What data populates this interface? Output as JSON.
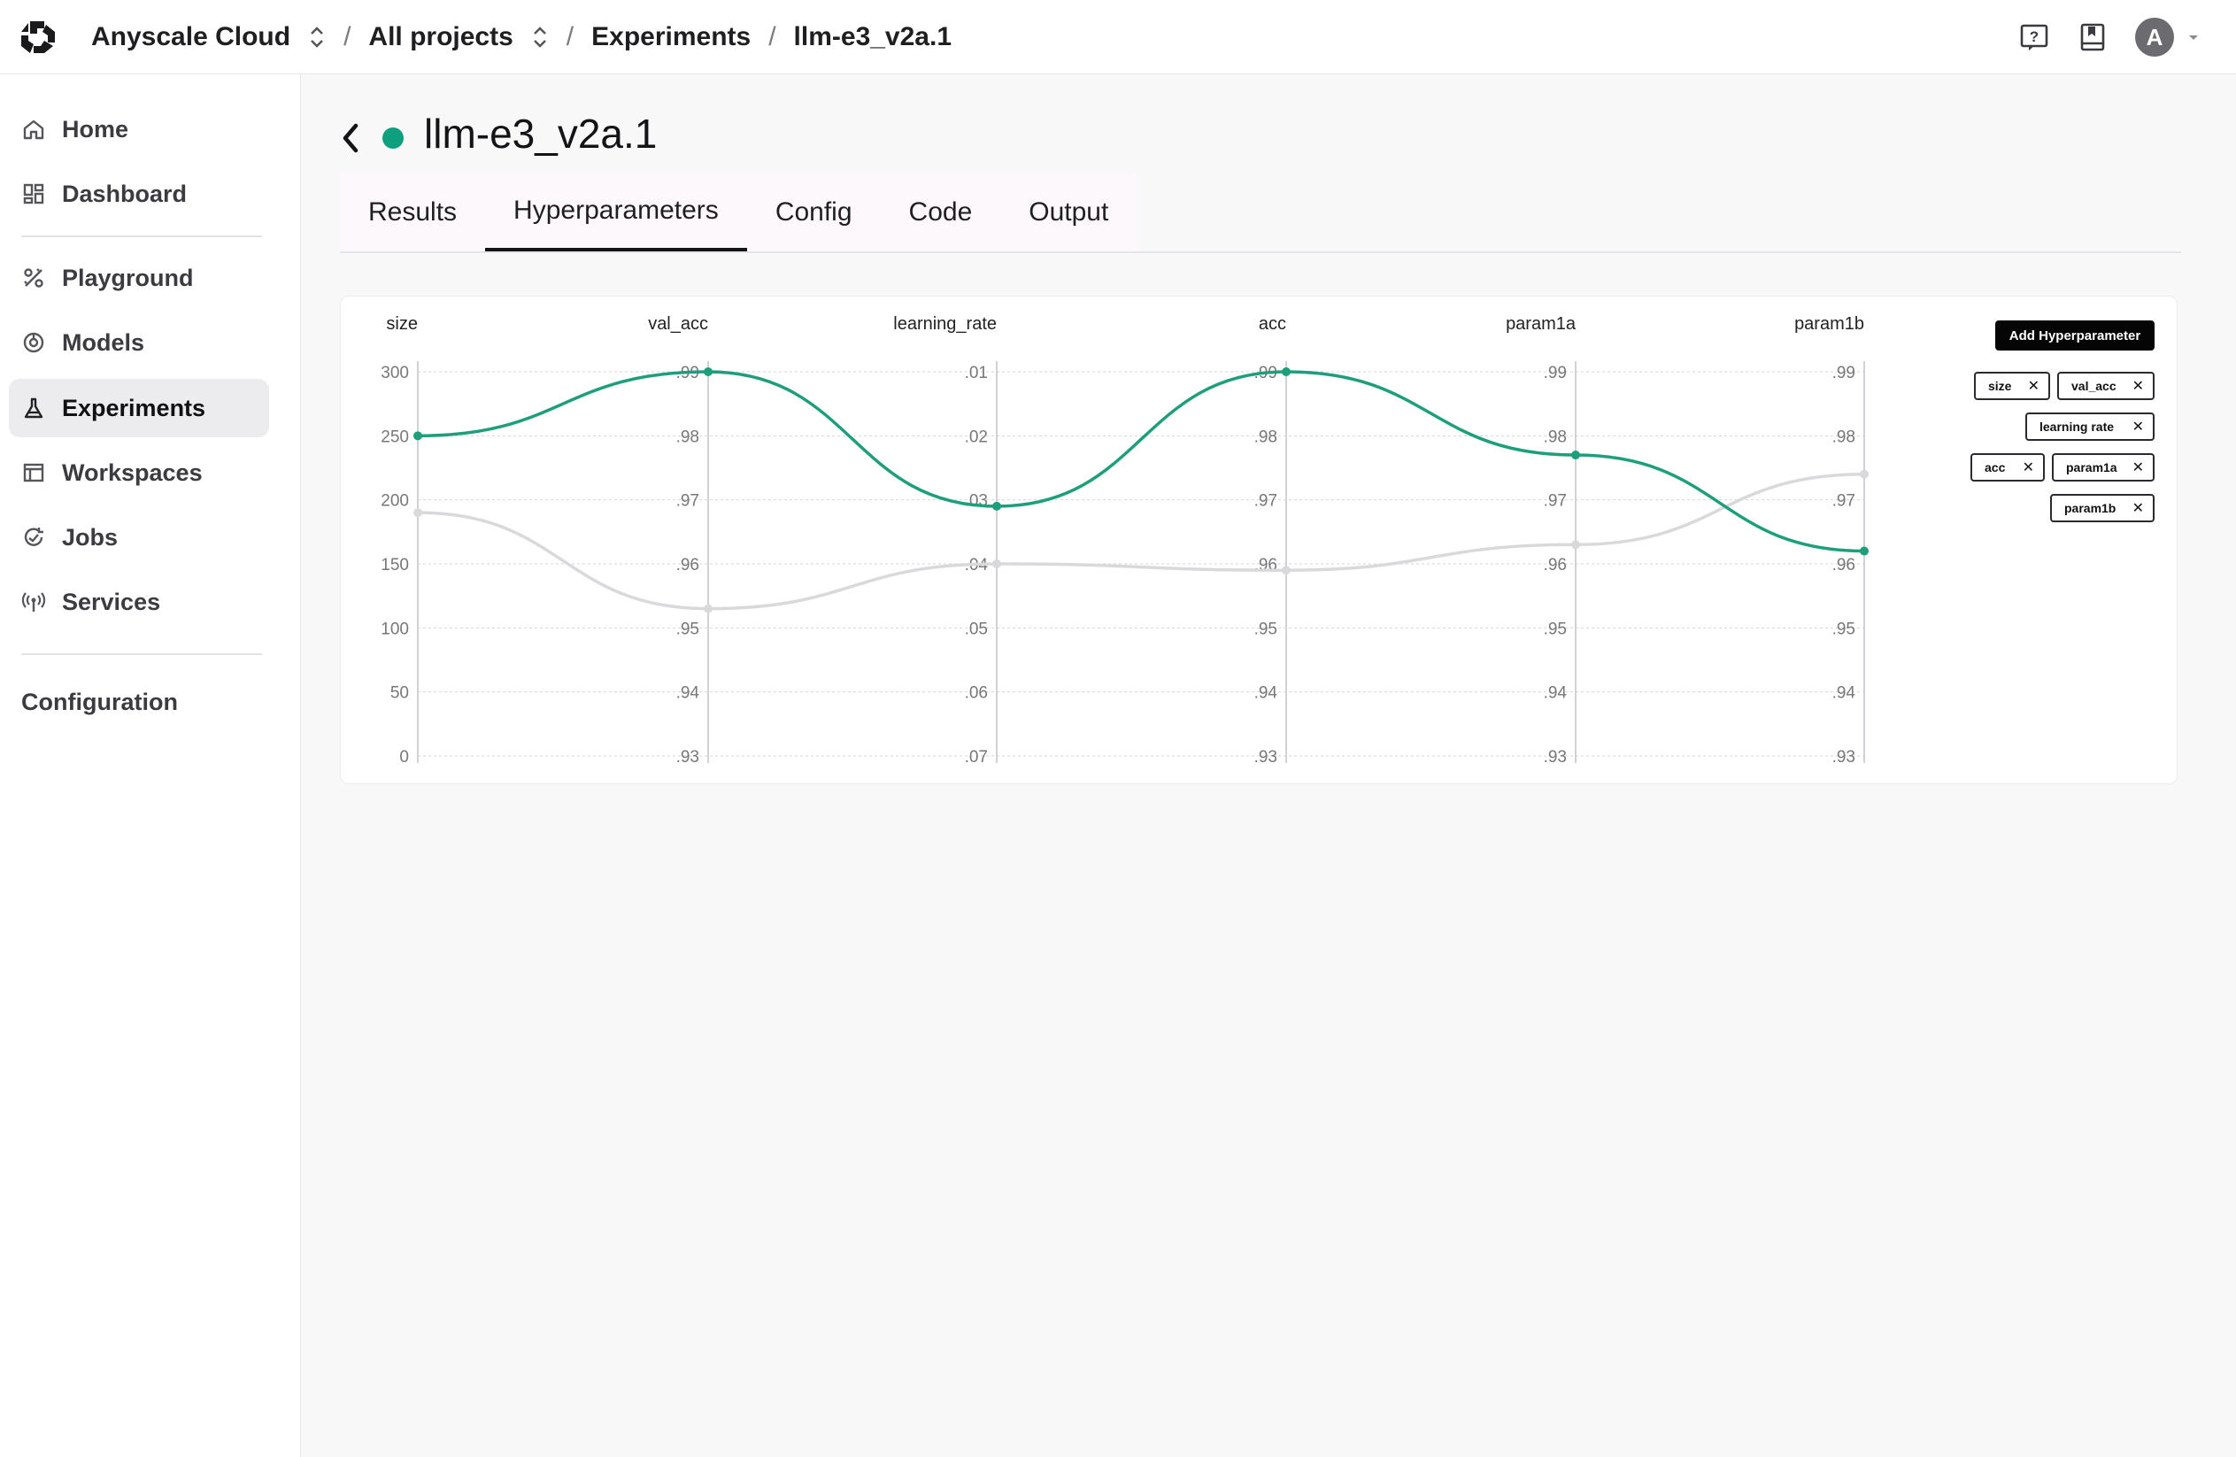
{
  "header": {
    "org": "Anyscale Cloud",
    "breadcrumb_sep": "/",
    "project": "All projects",
    "section": "Experiments",
    "current": "llm-e3_v2a.1",
    "icons": [
      "help-icon",
      "docs-icon",
      "avatar",
      "chevron-down-icon"
    ],
    "avatar_initial": "A"
  },
  "sidebar": {
    "items": [
      {
        "label": "Home",
        "icon": "home-icon"
      },
      {
        "label": "Dashboard",
        "icon": "dashboard-icon"
      },
      {
        "label": "Playground",
        "icon": "playground-icon"
      },
      {
        "label": "Models",
        "icon": "models-icon"
      },
      {
        "label": "Experiments",
        "icon": "flask-icon",
        "active": true
      },
      {
        "label": "Workspaces",
        "icon": "workspace-icon"
      },
      {
        "label": "Jobs",
        "icon": "jobs-icon"
      },
      {
        "label": "Services",
        "icon": "services-icon"
      }
    ],
    "configuration": "Configuration"
  },
  "page": {
    "title": "llm-e3_v2a.1",
    "status_color": "#0e9f7e",
    "tabs": [
      {
        "label": "Results"
      },
      {
        "label": "Hyperparameters",
        "active": true
      },
      {
        "label": "Config"
      },
      {
        "label": "Code"
      },
      {
        "label": "Output"
      }
    ]
  },
  "hyperparams": {
    "add_button": "Add Hyperparameter",
    "chips": [
      "size",
      "val_acc",
      "learning rate",
      "acc",
      "param1a",
      "param1b"
    ]
  },
  "chart_data": {
    "type": "line",
    "subtype": "parallel-coordinates",
    "axes": [
      {
        "name": "size",
        "ticks": [
          "300",
          "250",
          "200",
          "150",
          "100",
          "50",
          "0"
        ]
      },
      {
        "name": "val_acc",
        "ticks": [
          ".99",
          ".98",
          ".97",
          ".96",
          ".95",
          ".94",
          ".93"
        ]
      },
      {
        "name": "learning_rate",
        "ticks": [
          ".01",
          ".02",
          ".03",
          ".04",
          ".05",
          ".06",
          ".07"
        ]
      },
      {
        "name": "acc",
        "ticks": [
          ".99",
          ".98",
          ".97",
          ".96",
          ".95",
          ".94",
          ".93"
        ]
      },
      {
        "name": "param1a",
        "ticks": [
          ".99",
          ".98",
          ".97",
          ".96",
          ".95",
          ".94",
          ".93"
        ]
      },
      {
        "name": "param1b",
        "ticks": [
          ".99",
          ".98",
          ".97",
          ".96",
          ".95",
          ".94",
          ".93"
        ]
      }
    ],
    "series": [
      {
        "color": "#1f9e7b",
        "values": [
          250,
          0.99,
          0.031,
          0.99,
          0.977,
          0.962
        ]
      },
      {
        "color": "#d9d9dc",
        "values": [
          190,
          0.953,
          0.04,
          0.959,
          0.963,
          0.974
        ]
      }
    ],
    "grid": true,
    "colors": {
      "highlight": "#1f9e7b",
      "muted": "#d9d9dc",
      "grid": "#d6d6da",
      "axis": "#d2d2d6",
      "tick": "#777"
    }
  }
}
